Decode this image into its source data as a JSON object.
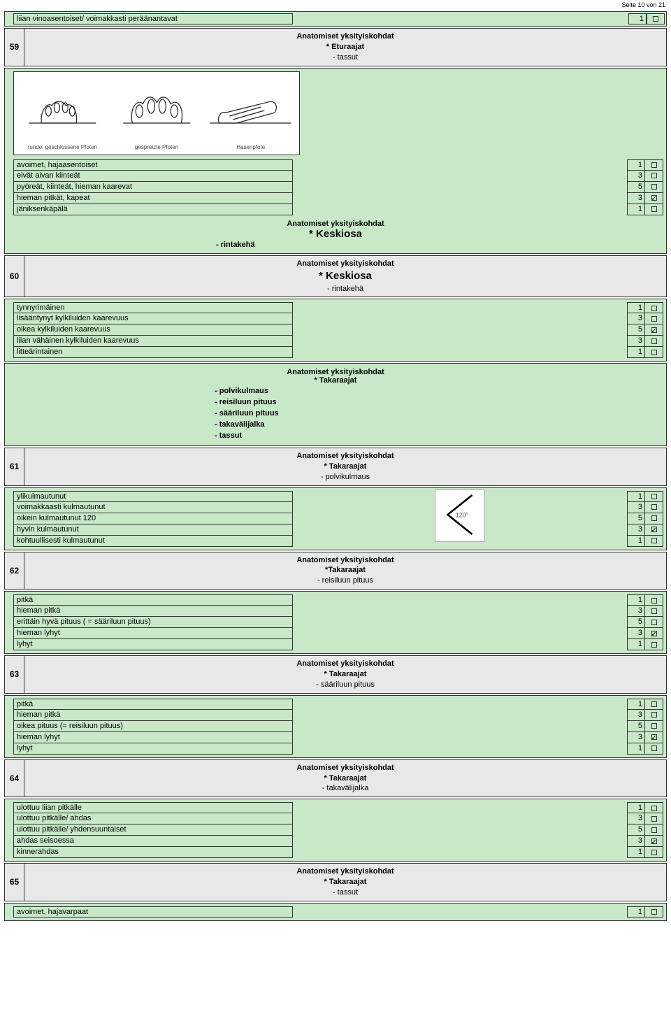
{
  "page_number_text": "Seite 10 von 21",
  "top_single_row": {
    "label": "liian vinoasentoiset/ voimakkasti peräänantavat",
    "score": "1",
    "checked": false
  },
  "sections": [
    {
      "num": "59",
      "header": {
        "l1": "Anatomiset yksityiskohdat",
        "l2": "* Eturaajat",
        "l3": "- tassut",
        "big": false
      },
      "has_paw_image": true,
      "paw_captions": [
        "runde, geschlossene Pfoten",
        "gespreizte Pfoten",
        "Hasenpfote"
      ],
      "rows": [
        {
          "label": "avoimet, hajaasentoiset",
          "score": "1",
          "checked": false
        },
        {
          "label": "eivät aivan kiinteät",
          "score": "3",
          "checked": false
        },
        {
          "label": "pyöreät,  kiinteät, hieman kaarevat",
          "score": "5",
          "checked": false
        },
        {
          "label": "hieman pitkät, kapeat",
          "score": "3",
          "checked": true
        },
        {
          "label": "jäniksenkäpälä",
          "score": "1",
          "checked": false
        }
      ],
      "after_header": {
        "l1": "Anatomiset yksityiskohdat",
        "lbig": "* Keskiosa",
        "lsub": "- rintakehä"
      }
    },
    {
      "num": "60",
      "header": {
        "l1": "Anatomiset yksityiskohdat",
        "lbig": "* Keskiosa",
        "l3": "- rintakehä",
        "big": true
      },
      "rows": [
        {
          "label": "tynnyrimäinen",
          "score": "1",
          "checked": false
        },
        {
          "label": "lisääntynyt kylkiluiden kaarevuus",
          "score": "3",
          "checked": false
        },
        {
          "label": "oikea kylkiluiden kaarevuus",
          "score": "5",
          "checked": true
        },
        {
          "label": "liian vähäinen kylkiluiden kaarevuus",
          "score": "3",
          "checked": false
        },
        {
          "label": "litteärintainen",
          "score": "1",
          "checked": false
        }
      ],
      "after_sub_list": {
        "l1": "Anatomiset yksityiskohdat",
        "l2": "* Takaraajat",
        "items": [
          "- polvikulmaus",
          "- reisiluun pituus",
          "- sääriluun pituus",
          "- takavälijalka",
          "- tassut"
        ]
      }
    },
    {
      "num": "61",
      "header": {
        "l1": "Anatomiset yksityiskohdat",
        "l2": "* Takaraajat",
        "l3": "- polvikulmaus",
        "big": false
      },
      "has_angle_image": true,
      "angle_label": "120°",
      "rows": [
        {
          "label": "ylikulmautunut",
          "score": "1",
          "checked": false
        },
        {
          "label": "voimakkaasti kulmautunut",
          "score": "3",
          "checked": false
        },
        {
          "label": "oikein kulmautunut 120",
          "score": "5",
          "checked": false
        },
        {
          "label": "hyvin kulmautunut",
          "score": "3",
          "checked": true
        },
        {
          "label": "kohtuullisesti kulmautunut",
          "score": "1",
          "checked": false
        }
      ]
    },
    {
      "num": "62",
      "header": {
        "l1": "Anatomiset yksityiskohdat",
        "l2": "*Takaraajat",
        "l3": "- reisiluun pituus",
        "big": false
      },
      "rows": [
        {
          "label": "pitkä",
          "score": "1",
          "checked": false
        },
        {
          "label": "hieman pitkä",
          "score": "3",
          "checked": false
        },
        {
          "label": "erittäin hyvä pituus ( = sääriluun pituus)",
          "score": "5",
          "checked": false
        },
        {
          "label": "hieman lyhyt",
          "score": "3",
          "checked": true
        },
        {
          "label": "lyhyt",
          "score": "1",
          "checked": false
        }
      ]
    },
    {
      "num": "63",
      "header": {
        "l1": "Anatomiset yksityiskohdat",
        "l2": "* Takaraajat",
        "l3": "- sääriluun pituus",
        "big": false
      },
      "rows": [
        {
          "label": "pitkä",
          "score": "1",
          "checked": false
        },
        {
          "label": "hieman pitkä",
          "score": "3",
          "checked": false
        },
        {
          "label": "oikea pituus (= reisiluun pituus)",
          "score": "5",
          "checked": false
        },
        {
          "label": "hieman lyhyt",
          "score": "3",
          "checked": true
        },
        {
          "label": "lyhyt",
          "score": "1",
          "checked": false
        }
      ]
    },
    {
      "num": "64",
      "header": {
        "l1": "Anatomiset yksityiskohdat",
        "l2": "* Takaraajat",
        "l3": "- takavälijalka",
        "big": false
      },
      "rows": [
        {
          "label": "ulottuu liian pitkälle",
          "score": "1",
          "checked": false
        },
        {
          "label": "ulottuu pitkälle/ ahdas",
          "score": "3",
          "checked": false
        },
        {
          "label": "ulottuu pitkälle/ yhdensuuntaiset",
          "score": "5",
          "checked": false
        },
        {
          "label": "ahdas seisoessa",
          "score": "3",
          "checked": true
        },
        {
          "label": "kinnerahdas",
          "score": "1",
          "checked": false
        }
      ]
    },
    {
      "num": "65",
      "header": {
        "l1": "Anatomiset yksityiskohdat",
        "l2": "* Takaraajat",
        "l3": "- tassut",
        "big": false
      },
      "rows": [
        {
          "label": "avoimet, hajavarpaat",
          "score": "1",
          "checked": false
        }
      ],
      "partial": true
    }
  ],
  "colors": {
    "section_bg": "#c8e8c8",
    "header_bg": "#e8e8e8",
    "border": "#333333"
  }
}
